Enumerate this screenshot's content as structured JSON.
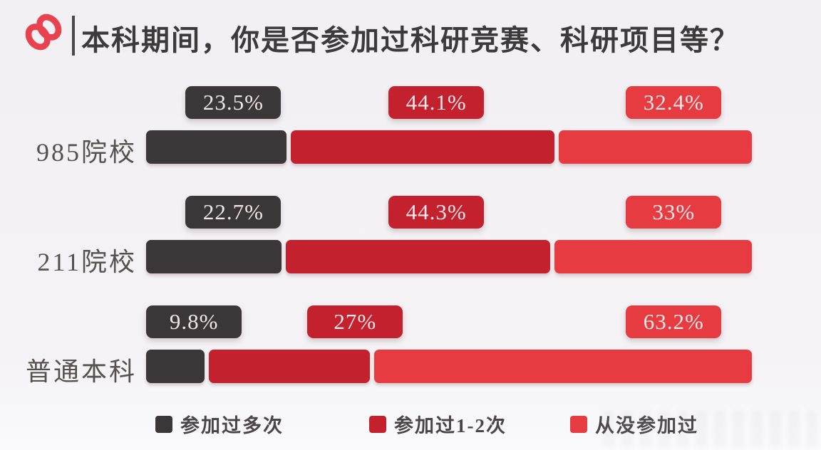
{
  "title": {
    "text": "本科期间，你是否参加过科研竞赛、科研项目等？"
  },
  "colors": {
    "background": "#f3f1f4",
    "dark": "#3b3739",
    "crimson": "#c4212f",
    "bright_red": "#e63b40",
    "icon_red": "#e84150",
    "title_text": "#3d3a3c",
    "label_text": "#56514f",
    "bubble_text": "#f2e7e7"
  },
  "chart_data": {
    "type": "bar",
    "stacked": true,
    "orientation": "horizontal",
    "title": "本科期间，你是否参加过科研竞赛、科研项目等？",
    "categories": [
      "985院校",
      "211院校",
      "普通本科"
    ],
    "series": [
      {
        "name": "参加过多次",
        "color": "#3b3739",
        "values": [
          23.5,
          22.7,
          9.8
        ],
        "value_labels": [
          "23.5%",
          "22.7%",
          "9.8%"
        ]
      },
      {
        "name": "参加过1-2次",
        "color": "#c4212f",
        "values": [
          44.1,
          44.3,
          27
        ],
        "value_labels": [
          "44.1%",
          "44.3%",
          "27%"
        ]
      },
      {
        "name": "从没参加过",
        "color": "#e63b40",
        "values": [
          32.4,
          33,
          63.2
        ],
        "value_labels": [
          "32.4%",
          "33%",
          "63.2%"
        ]
      }
    ],
    "xlim": [
      0,
      100
    ],
    "unit": "%",
    "grid": false,
    "legend_position": "bottom"
  },
  "legend": {
    "items": [
      {
        "label": "参加过多次",
        "color": "#3b3739"
      },
      {
        "label": "参加过1-2次",
        "color": "#c4212f"
      },
      {
        "label": "从没参加过",
        "color": "#e63b40"
      }
    ]
  }
}
